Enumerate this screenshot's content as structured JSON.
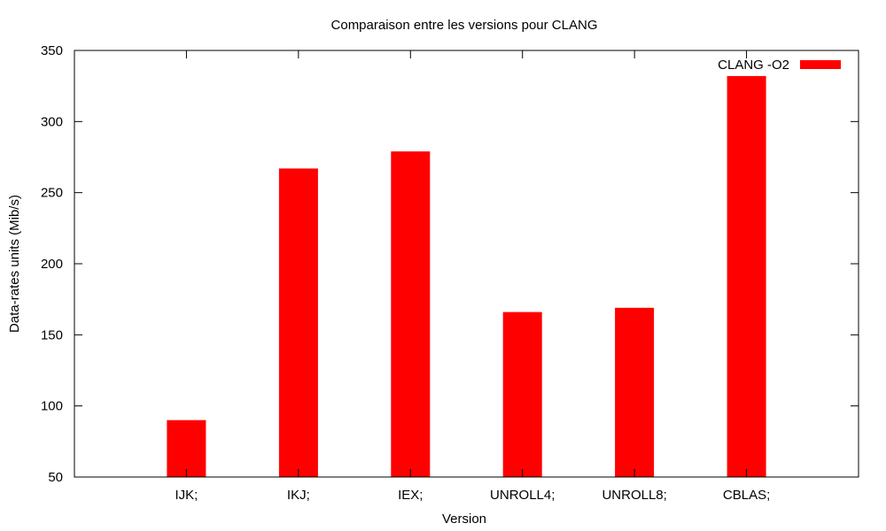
{
  "chart_data": {
    "type": "bar",
    "title": "Comparaison entre les versions pour CLANG",
    "xlabel": "Version",
    "ylabel": "Data-rates units (Mib/s)",
    "categories": [
      "IJK;",
      "IKJ;",
      "IEX;",
      "UNROLL4;",
      "UNROLL8;",
      "CBLAS;"
    ],
    "series": [
      {
        "name": "CLANG -O2",
        "values": [
          90,
          267,
          279,
          166,
          169,
          332
        ],
        "color": "#ff0000"
      }
    ],
    "ylim": [
      50,
      350
    ],
    "yticks": [
      50,
      100,
      150,
      200,
      250,
      300,
      350
    ],
    "grid": false,
    "legend_position": "top-right"
  }
}
